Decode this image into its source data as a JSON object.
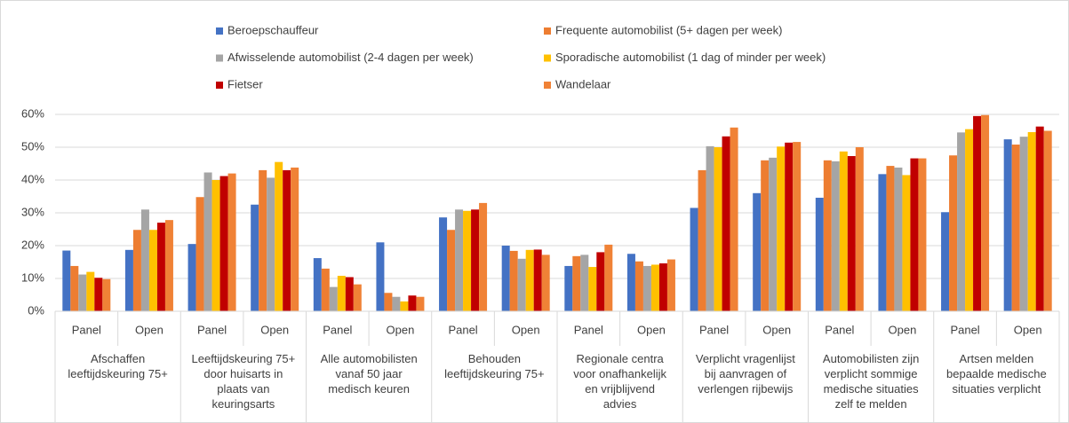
{
  "chart_data": {
    "type": "bar",
    "series": [
      {
        "name": "Beroepschauffeur",
        "color": "#4472c4",
        "values": [
          18.5,
          18.7,
          20.5,
          32.5,
          16.2,
          21,
          28.6,
          20,
          13.8,
          17.5,
          31.5,
          36,
          34.6,
          41.8,
          30.2,
          52.4
        ]
      },
      {
        "name": "Frequente automobilist (5+ dagen per week)",
        "color": "#ed7d31",
        "values": [
          13.8,
          24.8,
          34.8,
          43,
          13,
          5.6,
          24.8,
          18.4,
          16.8,
          15.2,
          43,
          46,
          46,
          44.3,
          47.5,
          50.8
        ]
      },
      {
        "name": "Afwisselende automobilist (2-4 dagen per week)",
        "color": "#a5a5a5",
        "values": [
          11.2,
          31,
          42.3,
          40.7,
          7.4,
          4.4,
          31,
          16,
          17.2,
          13.8,
          50.3,
          46.8,
          45.7,
          43.8,
          54.5,
          53.2
        ]
      },
      {
        "name": "Sporadische automobilist (1 dag of minder per week)",
        "color": "#ffc000",
        "values": [
          12,
          24.8,
          40,
          45.5,
          10.8,
          3,
          30.6,
          18.7,
          13.5,
          14.2,
          50,
          50.2,
          48.7,
          41.5,
          55.5,
          54.6
        ]
      },
      {
        "name": "Fietser",
        "color": "#c00000",
        "values": [
          10.2,
          27,
          41.2,
          43,
          10.4,
          4.8,
          31,
          18.8,
          18,
          14.6,
          53.3,
          51.4,
          47.3,
          46.6,
          59.5,
          56.3
        ]
      },
      {
        "name": "Wandelaar",
        "color": "#f08236",
        "values": [
          9.8,
          27.8,
          42,
          43.8,
          8.2,
          4.4,
          33,
          17.2,
          20.3,
          15.8,
          56,
          51.6,
          50,
          46.6,
          59.8,
          55
        ]
      }
    ],
    "categories": [
      "Panel",
      "Open",
      "Panel",
      "Open",
      "Panel",
      "Open",
      "Panel",
      "Open",
      "Panel",
      "Open",
      "Panel",
      "Open",
      "Panel",
      "Open",
      "Panel",
      "Open"
    ],
    "groups": [
      "Afschaffen\nleeftijdskeuring 75+",
      "Leeftijdskeuring 75+\ndoor huisarts in\nplaats van\nkeuringsarts",
      "Alle automobilisten\nvanaf 50 jaar\nmedisch keuren",
      "Behouden\nleeftijdskeuring 75+",
      "Regionale centra\nvoor onafhankelijk\nen vrijblijvend\nadvies",
      "Verplicht vragenlijst\nbij aanvragen of\nverlengen rijbewijs",
      "Automobilisten zijn\nverplicht sommige\nmedische situaties\nzelf te melden",
      "Artsen melden\nbepaalde medische\nsituaties verplicht"
    ],
    "ylim": [
      0,
      60
    ],
    "yticks": [
      {
        "value": 0,
        "label": "0%"
      },
      {
        "value": 10,
        "label": "10%"
      },
      {
        "value": 20,
        "label": "20%"
      },
      {
        "value": 30,
        "label": "30%"
      },
      {
        "value": 40,
        "label": "40%"
      },
      {
        "value": 50,
        "label": "50%"
      },
      {
        "value": 60,
        "label": "60%"
      }
    ],
    "grid": true,
    "legend": "top"
  }
}
